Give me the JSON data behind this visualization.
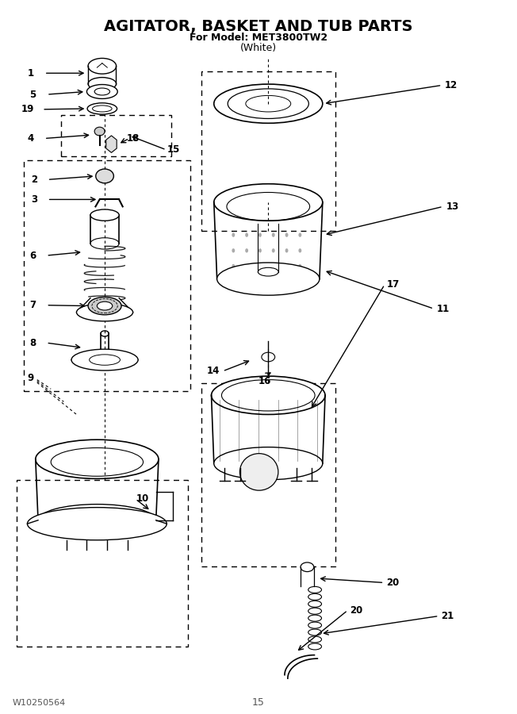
{
  "title_line1": "AGITATOR, BASKET AND TUB PARTS",
  "title_line2": "For Model: MET3800TW2",
  "title_line3": "(White)",
  "footer_left": "W10250564",
  "footer_center": "15",
  "bg_color": "#ffffff",
  "line_color": "#000000"
}
